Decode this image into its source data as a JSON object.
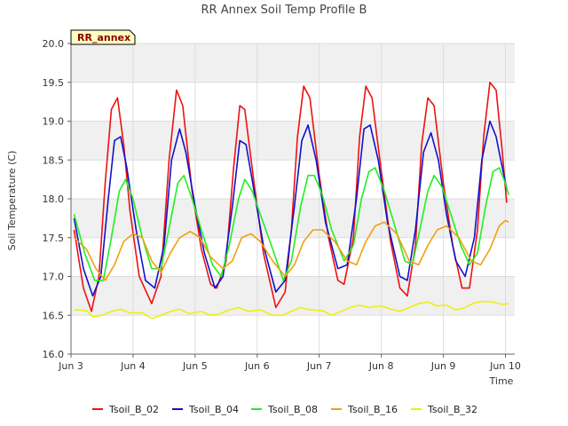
{
  "chart_data": {
    "type": "line",
    "title": "RR Annex Soil Temp Profile B",
    "xlabel": "Time",
    "ylabel": "Soil Temperature (C)",
    "badge": "RR_annex",
    "xlim": [
      0,
      7.15
    ],
    "ylim": [
      16.0,
      20.0
    ],
    "x_ticks": [
      {
        "value": 0,
        "label": "Jun 3"
      },
      {
        "value": 1,
        "label": "Jun 4"
      },
      {
        "value": 2,
        "label": "Jun 5"
      },
      {
        "value": 3,
        "label": "Jun 6"
      },
      {
        "value": 4,
        "label": "Jun 7"
      },
      {
        "value": 5,
        "label": "Jun 8"
      },
      {
        "value": 6,
        "label": "Jun 9"
      },
      {
        "value": 7,
        "label": "Jun 10"
      }
    ],
    "y_ticks": [
      "16.0",
      "16.5",
      "17.0",
      "17.5",
      "18.0",
      "18.5",
      "19.0",
      "19.5",
      "20.0"
    ],
    "grid": true,
    "legend_position": "bottom",
    "series": [
      {
        "name": "Tsoil_B_02",
        "color": "#ee1111",
        "points": [
          [
            0.05,
            17.6
          ],
          [
            0.2,
            16.85
          ],
          [
            0.33,
            16.55
          ],
          [
            0.45,
            17.0
          ],
          [
            0.55,
            18.2
          ],
          [
            0.65,
            19.15
          ],
          [
            0.75,
            19.3
          ],
          [
            0.85,
            18.7
          ],
          [
            0.95,
            17.85
          ],
          [
            1.1,
            17.0
          ],
          [
            1.3,
            16.65
          ],
          [
            1.45,
            17.0
          ],
          [
            1.58,
            18.5
          ],
          [
            1.7,
            19.4
          ],
          [
            1.8,
            19.2
          ],
          [
            1.95,
            18.1
          ],
          [
            2.1,
            17.35
          ],
          [
            2.25,
            16.9
          ],
          [
            2.35,
            16.85
          ],
          [
            2.5,
            17.2
          ],
          [
            2.62,
            18.4
          ],
          [
            2.72,
            19.2
          ],
          [
            2.8,
            19.15
          ],
          [
            2.95,
            18.2
          ],
          [
            3.1,
            17.3
          ],
          [
            3.3,
            16.6
          ],
          [
            3.45,
            16.8
          ],
          [
            3.55,
            17.6
          ],
          [
            3.65,
            18.8
          ],
          [
            3.75,
            19.45
          ],
          [
            3.85,
            19.3
          ],
          [
            4.0,
            18.3
          ],
          [
            4.15,
            17.5
          ],
          [
            4.3,
            16.95
          ],
          [
            4.4,
            16.9
          ],
          [
            4.55,
            17.5
          ],
          [
            4.65,
            18.8
          ],
          [
            4.75,
            19.45
          ],
          [
            4.85,
            19.3
          ],
          [
            5.0,
            18.35
          ],
          [
            5.15,
            17.45
          ],
          [
            5.3,
            16.85
          ],
          [
            5.42,
            16.75
          ],
          [
            5.55,
            17.4
          ],
          [
            5.65,
            18.7
          ],
          [
            5.75,
            19.3
          ],
          [
            5.85,
            19.2
          ],
          [
            6.0,
            18.2
          ],
          [
            6.15,
            17.4
          ],
          [
            6.3,
            16.85
          ],
          [
            6.42,
            16.85
          ],
          [
            6.55,
            17.6
          ],
          [
            6.65,
            18.8
          ],
          [
            6.75,
            19.5
          ],
          [
            6.85,
            19.4
          ],
          [
            6.95,
            18.6
          ],
          [
            7.02,
            17.95
          ]
        ]
      },
      {
        "name": "Tsoil_B_04",
        "color": "#1111cc",
        "points": [
          [
            0.05,
            17.75
          ],
          [
            0.2,
            17.1
          ],
          [
            0.35,
            16.75
          ],
          [
            0.48,
            17.0
          ],
          [
            0.6,
            18.0
          ],
          [
            0.7,
            18.75
          ],
          [
            0.8,
            18.8
          ],
          [
            0.9,
            18.4
          ],
          [
            1.05,
            17.6
          ],
          [
            1.2,
            16.95
          ],
          [
            1.35,
            16.85
          ],
          [
            1.5,
            17.4
          ],
          [
            1.62,
            18.5
          ],
          [
            1.75,
            18.9
          ],
          [
            1.85,
            18.6
          ],
          [
            2.0,
            17.9
          ],
          [
            2.15,
            17.3
          ],
          [
            2.32,
            16.85
          ],
          [
            2.45,
            17.0
          ],
          [
            2.6,
            17.9
          ],
          [
            2.72,
            18.75
          ],
          [
            2.82,
            18.7
          ],
          [
            2.95,
            18.1
          ],
          [
            3.1,
            17.4
          ],
          [
            3.3,
            16.8
          ],
          [
            3.45,
            16.95
          ],
          [
            3.6,
            17.9
          ],
          [
            3.72,
            18.75
          ],
          [
            3.82,
            18.95
          ],
          [
            3.95,
            18.5
          ],
          [
            4.1,
            17.7
          ],
          [
            4.3,
            17.1
          ],
          [
            4.45,
            17.15
          ],
          [
            4.6,
            18.0
          ],
          [
            4.72,
            18.9
          ],
          [
            4.82,
            18.95
          ],
          [
            4.95,
            18.5
          ],
          [
            5.1,
            17.7
          ],
          [
            5.3,
            17.0
          ],
          [
            5.42,
            16.95
          ],
          [
            5.55,
            17.6
          ],
          [
            5.68,
            18.6
          ],
          [
            5.8,
            18.85
          ],
          [
            5.92,
            18.5
          ],
          [
            6.05,
            17.8
          ],
          [
            6.2,
            17.2
          ],
          [
            6.35,
            17.0
          ],
          [
            6.5,
            17.5
          ],
          [
            6.62,
            18.5
          ],
          [
            6.75,
            19.0
          ],
          [
            6.85,
            18.8
          ],
          [
            6.95,
            18.4
          ],
          [
            7.03,
            18.1
          ]
        ]
      },
      {
        "name": "Tsoil_B_08",
        "color": "#22ee22",
        "points": [
          [
            0.05,
            17.8
          ],
          [
            0.22,
            17.3
          ],
          [
            0.38,
            16.95
          ],
          [
            0.52,
            16.95
          ],
          [
            0.65,
            17.5
          ],
          [
            0.78,
            18.1
          ],
          [
            0.88,
            18.25
          ],
          [
            1.0,
            18.0
          ],
          [
            1.15,
            17.5
          ],
          [
            1.3,
            17.1
          ],
          [
            1.45,
            17.1
          ],
          [
            1.6,
            17.7
          ],
          [
            1.72,
            18.2
          ],
          [
            1.82,
            18.3
          ],
          [
            1.95,
            18.0
          ],
          [
            2.1,
            17.6
          ],
          [
            2.28,
            17.15
          ],
          [
            2.42,
            17.0
          ],
          [
            2.55,
            17.4
          ],
          [
            2.7,
            18.0
          ],
          [
            2.8,
            18.25
          ],
          [
            2.92,
            18.1
          ],
          [
            3.05,
            17.8
          ],
          [
            3.25,
            17.35
          ],
          [
            3.42,
            16.95
          ],
          [
            3.55,
            17.2
          ],
          [
            3.7,
            17.9
          ],
          [
            3.82,
            18.3
          ],
          [
            3.92,
            18.3
          ],
          [
            4.05,
            18.05
          ],
          [
            4.2,
            17.6
          ],
          [
            4.4,
            17.2
          ],
          [
            4.55,
            17.4
          ],
          [
            4.68,
            18.0
          ],
          [
            4.8,
            18.35
          ],
          [
            4.9,
            18.4
          ],
          [
            5.05,
            18.1
          ],
          [
            5.2,
            17.7
          ],
          [
            5.38,
            17.2
          ],
          [
            5.5,
            17.15
          ],
          [
            5.62,
            17.6
          ],
          [
            5.75,
            18.1
          ],
          [
            5.85,
            18.3
          ],
          [
            5.98,
            18.15
          ],
          [
            6.1,
            17.85
          ],
          [
            6.28,
            17.4
          ],
          [
            6.42,
            17.15
          ],
          [
            6.55,
            17.3
          ],
          [
            6.68,
            17.9
          ],
          [
            6.8,
            18.35
          ],
          [
            6.9,
            18.4
          ],
          [
            7.0,
            18.2
          ],
          [
            7.05,
            18.05
          ]
        ]
      },
      {
        "name": "Tsoil_B_16",
        "color": "#f0a010",
        "points": [
          [
            0.05,
            17.5
          ],
          [
            0.25,
            17.35
          ],
          [
            0.4,
            17.1
          ],
          [
            0.55,
            16.95
          ],
          [
            0.7,
            17.15
          ],
          [
            0.85,
            17.45
          ],
          [
            1.0,
            17.55
          ],
          [
            1.15,
            17.5
          ],
          [
            1.3,
            17.2
          ],
          [
            1.45,
            17.05
          ],
          [
            1.6,
            17.3
          ],
          [
            1.75,
            17.5
          ],
          [
            1.92,
            17.58
          ],
          [
            2.08,
            17.5
          ],
          [
            2.25,
            17.25
          ],
          [
            2.45,
            17.1
          ],
          [
            2.6,
            17.2
          ],
          [
            2.75,
            17.5
          ],
          [
            2.9,
            17.55
          ],
          [
            3.05,
            17.45
          ],
          [
            3.25,
            17.2
          ],
          [
            3.45,
            17.0
          ],
          [
            3.6,
            17.15
          ],
          [
            3.75,
            17.45
          ],
          [
            3.9,
            17.6
          ],
          [
            4.05,
            17.6
          ],
          [
            4.25,
            17.45
          ],
          [
            4.45,
            17.2
          ],
          [
            4.6,
            17.15
          ],
          [
            4.75,
            17.45
          ],
          [
            4.9,
            17.65
          ],
          [
            5.05,
            17.7
          ],
          [
            5.25,
            17.55
          ],
          [
            5.45,
            17.2
          ],
          [
            5.6,
            17.15
          ],
          [
            5.75,
            17.4
          ],
          [
            5.9,
            17.6
          ],
          [
            6.05,
            17.65
          ],
          [
            6.25,
            17.5
          ],
          [
            6.45,
            17.2
          ],
          [
            6.6,
            17.15
          ],
          [
            6.75,
            17.35
          ],
          [
            6.9,
            17.65
          ],
          [
            7.0,
            17.72
          ],
          [
            7.05,
            17.7
          ]
        ]
      },
      {
        "name": "Tsoil_B_32",
        "color": "#eeee11",
        "points": [
          [
            0.05,
            16.57
          ],
          [
            0.25,
            16.56
          ],
          [
            0.35,
            16.48
          ],
          [
            0.5,
            16.5
          ],
          [
            0.65,
            16.55
          ],
          [
            0.8,
            16.58
          ],
          [
            0.95,
            16.53
          ],
          [
            1.15,
            16.53
          ],
          [
            1.3,
            16.46
          ],
          [
            1.45,
            16.5
          ],
          [
            1.6,
            16.55
          ],
          [
            1.75,
            16.58
          ],
          [
            1.9,
            16.52
          ],
          [
            2.1,
            16.55
          ],
          [
            2.25,
            16.5
          ],
          [
            2.4,
            16.52
          ],
          [
            2.55,
            16.57
          ],
          [
            2.7,
            16.6
          ],
          [
            2.85,
            16.55
          ],
          [
            3.05,
            16.57
          ],
          [
            3.25,
            16.5
          ],
          [
            3.4,
            16.5
          ],
          [
            3.55,
            16.55
          ],
          [
            3.7,
            16.6
          ],
          [
            3.85,
            16.57
          ],
          [
            4.05,
            16.56
          ],
          [
            4.2,
            16.5
          ],
          [
            4.35,
            16.55
          ],
          [
            4.5,
            16.6
          ],
          [
            4.65,
            16.63
          ],
          [
            4.8,
            16.6
          ],
          [
            5.0,
            16.62
          ],
          [
            5.15,
            16.58
          ],
          [
            5.3,
            16.55
          ],
          [
            5.45,
            16.6
          ],
          [
            5.6,
            16.65
          ],
          [
            5.75,
            16.67
          ],
          [
            5.9,
            16.62
          ],
          [
            6.05,
            16.63
          ],
          [
            6.2,
            16.57
          ],
          [
            6.35,
            16.6
          ],
          [
            6.5,
            16.66
          ],
          [
            6.65,
            16.68
          ],
          [
            6.8,
            16.67
          ],
          [
            6.95,
            16.64
          ],
          [
            7.05,
            16.65
          ]
        ]
      }
    ]
  }
}
